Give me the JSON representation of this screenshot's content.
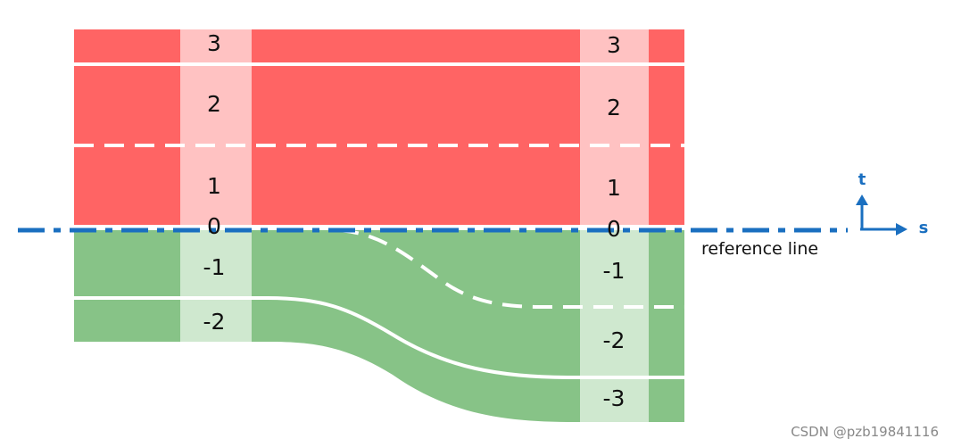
{
  "sections": [
    {
      "labels": [
        "3",
        "2",
        "1",
        "0",
        "-1",
        "-2"
      ]
    },
    {
      "labels": [
        "3",
        "2",
        "1",
        "0",
        "-1",
        "-2",
        "-3"
      ]
    }
  ],
  "reference_line": "reference line",
  "axes": {
    "t": "t",
    "s": "s"
  },
  "watermark": "CSDN @pzb19841116"
}
